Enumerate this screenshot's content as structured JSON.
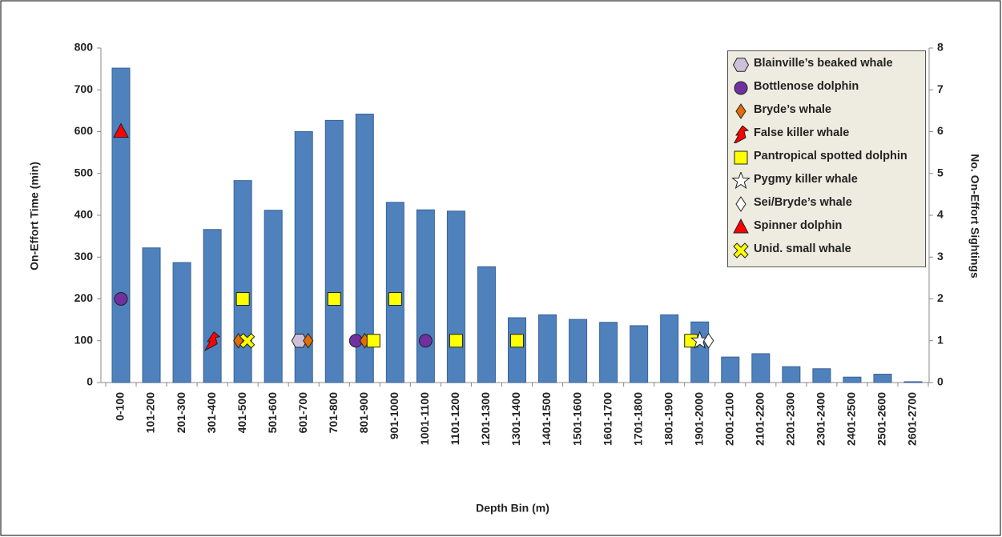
{
  "chart_data": {
    "type": "bar",
    "x_label": "Depth Bin (m)",
    "y_label": "On-Effort Time (min)",
    "y2_label": "No. On-Effort Sightings",
    "categories": [
      "0-100",
      "101-200",
      "201-300",
      "301-400",
      "401-500",
      "501-600",
      "601-700",
      "701-800",
      "801-900",
      "901-1000",
      "1001-1100",
      "1101-1200",
      "1201-1300",
      "1301-1400",
      "1401-1500",
      "1501-1600",
      "1601-1700",
      "1701-1800",
      "1801-1900",
      "1901-2000",
      "2001-2100",
      "2101-2200",
      "2201-2300",
      "2301-2400",
      "2401-2500",
      "2501-2600",
      "2601-2700"
    ],
    "values": [
      752,
      322,
      287,
      366,
      483,
      412,
      600,
      627,
      642,
      431,
      413,
      410,
      277,
      155,
      162,
      151,
      144,
      136,
      162,
      145,
      61,
      69,
      38,
      33,
      13,
      20,
      2
    ],
    "color": "#4f81bd",
    "ylim": [
      0,
      800
    ],
    "yticks": [
      0,
      100,
      200,
      300,
      400,
      500,
      600,
      700,
      800
    ],
    "y2lim": [
      0,
      8
    ],
    "y2ticks": [
      0,
      1,
      2,
      3,
      4,
      5,
      6,
      7,
      8
    ],
    "legend": "upper right",
    "series": [
      {
        "name": "Blainville’s beaked whale",
        "color": "#ccc0da",
        "marker": "hexagon",
        "axis": "y2",
        "values": [
          null,
          null,
          null,
          null,
          null,
          null,
          1,
          null,
          null,
          null,
          null,
          null,
          null,
          null,
          null,
          null,
          null,
          null,
          null,
          null,
          null,
          null,
          null,
          null,
          null,
          null,
          null
        ]
      },
      {
        "name": "Bottlenose dolphin",
        "color": "#7030a0",
        "marker": "circle",
        "axis": "y2",
        "values": [
          2,
          null,
          null,
          null,
          null,
          null,
          null,
          null,
          1,
          null,
          1,
          null,
          null,
          null,
          null,
          null,
          null,
          null,
          null,
          null,
          null,
          null,
          null,
          null,
          null,
          null,
          null
        ]
      },
      {
        "name": "Bryde’s whale",
        "color": "#e36c09",
        "marker": "diamond",
        "axis": "y2",
        "values": [
          null,
          null,
          null,
          null,
          1,
          null,
          1,
          null,
          1,
          null,
          null,
          null,
          null,
          null,
          null,
          null,
          null,
          null,
          null,
          null,
          null,
          null,
          null,
          null,
          null,
          null,
          null
        ]
      },
      {
        "name": "False killer whale",
        "color": "#ff0000",
        "marker": "bolt",
        "axis": "y2",
        "values": [
          null,
          null,
          null,
          1,
          null,
          null,
          null,
          null,
          null,
          null,
          null,
          null,
          null,
          null,
          null,
          null,
          null,
          null,
          null,
          null,
          null,
          null,
          null,
          null,
          null,
          null,
          null
        ]
      },
      {
        "name": "Pantropical spotted dolphin",
        "color": "#ffff00",
        "marker": "square",
        "axis": "y2",
        "values": [
          null,
          null,
          null,
          null,
          2,
          null,
          null,
          2,
          1,
          2,
          null,
          1,
          null,
          1,
          null,
          null,
          null,
          null,
          null,
          1,
          null,
          null,
          null,
          null,
          null,
          null,
          null
        ]
      },
      {
        "name": "Pygmy killer whale",
        "color": "#ffffff",
        "marker": "star",
        "axis": "y2",
        "values": [
          null,
          null,
          null,
          null,
          null,
          null,
          null,
          null,
          null,
          null,
          null,
          null,
          null,
          null,
          null,
          null,
          null,
          null,
          null,
          1,
          null,
          null,
          null,
          null,
          null,
          null,
          null
        ]
      },
      {
        "name": "Sei/Bryde’s whale",
        "color": "#ffffff",
        "marker": "diamond",
        "axis": "y2",
        "values": [
          null,
          null,
          null,
          null,
          null,
          null,
          null,
          null,
          null,
          null,
          null,
          null,
          null,
          null,
          null,
          null,
          null,
          null,
          null,
          1,
          null,
          null,
          null,
          null,
          null,
          null,
          null
        ]
      },
      {
        "name": "Spinner dolphin",
        "color": "#ff0000",
        "marker": "triangle",
        "axis": "y2",
        "values": [
          6,
          null,
          null,
          null,
          null,
          null,
          null,
          null,
          null,
          null,
          null,
          null,
          null,
          null,
          null,
          null,
          null,
          null,
          null,
          null,
          null,
          null,
          null,
          null,
          null,
          null,
          null
        ]
      },
      {
        "name": "Unid. small whale",
        "color": "#ffff00",
        "marker": "cross",
        "axis": "y2",
        "values": [
          null,
          null,
          null,
          null,
          1,
          null,
          null,
          null,
          null,
          null,
          null,
          null,
          null,
          null,
          null,
          null,
          null,
          null,
          null,
          null,
          null,
          null,
          null,
          null,
          null,
          null,
          null
        ]
      }
    ]
  }
}
